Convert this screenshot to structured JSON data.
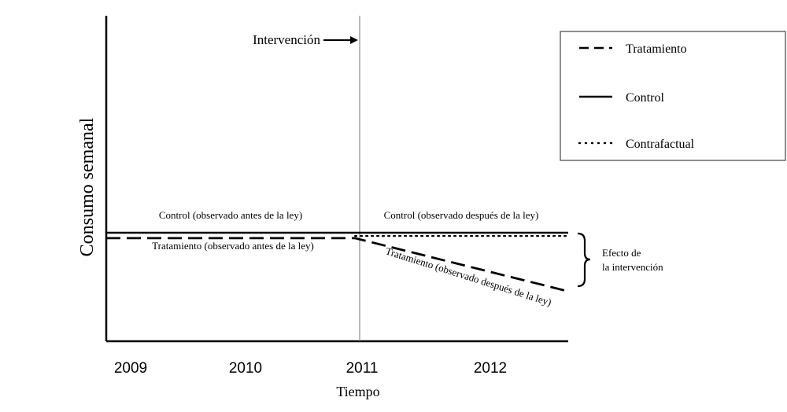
{
  "chart_data": {
    "type": "line",
    "xlabel": "Tiempo",
    "ylabel": "Consumo semanal",
    "x_ticks": [
      "2009",
      "2010",
      "2011",
      "2012"
    ],
    "intervention": {
      "label": "Intervención",
      "x": 2011
    },
    "series": [
      {
        "name": "Tratamiento",
        "style": "dashed",
        "color": "#000000",
        "points": [
          [
            2008.9,
            9.5
          ],
          [
            2011,
            9.5
          ],
          [
            2012.8,
            4.6
          ]
        ]
      },
      {
        "name": "Control",
        "style": "solid",
        "color": "#000000",
        "points": [
          [
            2008.9,
            10.0
          ],
          [
            2012.8,
            10.0
          ]
        ]
      },
      {
        "name": "Contrafactual",
        "style": "dotted",
        "color": "#000000",
        "points": [
          [
            2011,
            9.7
          ],
          [
            2012.8,
            9.7
          ]
        ]
      }
    ],
    "annotations": {
      "control_before": "Control (observado antes de la ley)",
      "control_after": "Control (observado después de la ley)",
      "treatment_before": "Tratamiento (observado antes de la ley)",
      "treatment_after": "Tratamiento (observado después de la ley)",
      "effect_line1": "Efecto de",
      "effect_line2": "la intervención"
    },
    "legend": {
      "position": "top-right",
      "entries": [
        {
          "label": "Tratamiento",
          "style": "dashed"
        },
        {
          "label": "Control",
          "style": "solid"
        },
        {
          "label": "Contrafactual",
          "style": "dotted"
        }
      ]
    },
    "grid": false
  }
}
